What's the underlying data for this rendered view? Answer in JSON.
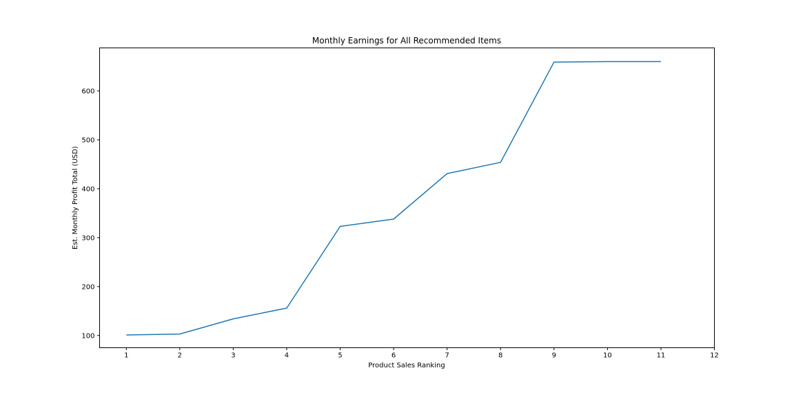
{
  "chart_data": {
    "type": "line",
    "title": "Monthly Earnings for All Recommended Items",
    "xlabel": "Product Sales Ranking",
    "ylabel": "Est. Monthly Profit Total (USD)",
    "x": [
      1,
      2,
      3,
      4,
      5,
      6,
      7,
      8,
      9,
      10,
      11
    ],
    "series": [
      {
        "values": [
          101,
          103,
          134,
          156,
          323,
          338,
          431,
          454,
          659,
          660,
          660
        ]
      }
    ],
    "xlim": [
      0.5,
      12
    ],
    "ylim": [
      75,
      688
    ],
    "xticks": [
      "1",
      "2",
      "3",
      "4",
      "5",
      "6",
      "7",
      "8",
      "9",
      "10",
      "11",
      "12"
    ],
    "yticks": [
      "100",
      "200",
      "300",
      "400",
      "500",
      "600"
    ],
    "grid": false,
    "line_color": "#1f77b4"
  }
}
